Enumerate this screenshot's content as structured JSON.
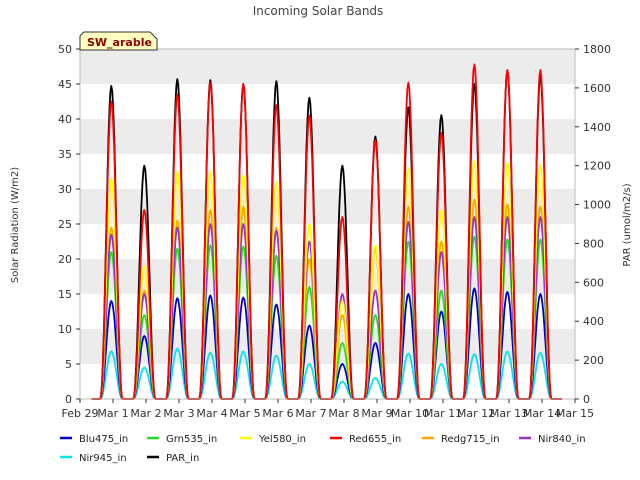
{
  "chart_data": {
    "type": "line",
    "title": "Incoming Solar Bands",
    "xlabel": "",
    "ylabel": "Solar Radiation (W/m2)",
    "y2label": "PAR (umol/m2/s)",
    "badge": "SW_arable",
    "x_tick_labels": [
      "Feb 29",
      "Mar 1",
      "Mar 2",
      "Mar 3",
      "Mar 4",
      "Mar 5",
      "Mar 6",
      "Mar 7",
      "Mar 8",
      "Mar 9",
      "Mar 10",
      "Mar 11",
      "Mar 12",
      "Mar 13",
      "Mar 14",
      "Mar 15"
    ],
    "ylim": [
      0,
      50
    ],
    "yticks": [
      0,
      5,
      10,
      15,
      20,
      25,
      30,
      35,
      40,
      45,
      50
    ],
    "y2lim": [
      0,
      1800
    ],
    "y2ticks": [
      0,
      200,
      400,
      600,
      800,
      1000,
      1200,
      1400,
      1600,
      1800
    ],
    "grid": "horizontal bands",
    "legend_position": "bottom",
    "x_description": "daily peaks, one per day Mar 1 – Mar 14",
    "days": [
      "Mar 1",
      "Mar 2",
      "Mar 3",
      "Mar 4",
      "Mar 5",
      "Mar 6",
      "Mar 7",
      "Mar 8",
      "Mar 9",
      "Mar 10",
      "Mar 11",
      "Mar 12",
      "Mar 13",
      "Mar 14"
    ],
    "series": [
      {
        "name": "Blu475_in",
        "color": "#0000cc",
        "axis": "left",
        "daily_peak": [
          14.0,
          9.0,
          14.4,
          14.8,
          14.5,
          13.5,
          10.5,
          5.0,
          8.0,
          15.0,
          12.5,
          15.8,
          15.3,
          15.0
        ]
      },
      {
        "name": "Grn535_in",
        "color": "#22dd22",
        "axis": "left",
        "daily_peak": [
          21.0,
          12.0,
          21.5,
          22.0,
          21.8,
          20.5,
          16.0,
          8.0,
          12.0,
          22.5,
          15.5,
          23.2,
          22.8,
          22.8
        ]
      },
      {
        "name": "Yel580_in",
        "color": "#ffff00",
        "axis": "left",
        "daily_peak": [
          31.5,
          19.0,
          32.5,
          32.5,
          32.0,
          31.0,
          25.0,
          14.0,
          22.0,
          33.0,
          27.0,
          34.0,
          33.8,
          33.5
        ]
      },
      {
        "name": "Red655_in",
        "color": "#ff0000",
        "axis": "left",
        "daily_peak": [
          42.5,
          27.0,
          43.5,
          45.2,
          45.0,
          42.0,
          40.5,
          26.0,
          37.0,
          45.2,
          38.0,
          47.8,
          47.0,
          47.0
        ]
      },
      {
        "name": "Redg715_in",
        "color": "#ffa500",
        "axis": "left",
        "daily_peak": [
          24.5,
          15.5,
          25.5,
          27.0,
          27.5,
          24.5,
          20.0,
          12.0,
          21.5,
          27.5,
          22.5,
          28.5,
          27.8,
          27.5
        ]
      },
      {
        "name": "Nir840_in",
        "color": "#9933cc",
        "axis": "left",
        "daily_peak": [
          23.5,
          15.0,
          24.5,
          25.0,
          25.0,
          24.0,
          22.5,
          15.0,
          15.5,
          25.3,
          21.0,
          26.0,
          26.0,
          26.0
        ]
      },
      {
        "name": "Nir945_in",
        "color": "#00e5ee",
        "axis": "left",
        "daily_peak": [
          6.8,
          4.5,
          7.2,
          6.6,
          6.8,
          6.2,
          5.0,
          2.5,
          3.0,
          6.5,
          5.0,
          6.4,
          6.8,
          6.6
        ]
      },
      {
        "name": "PAR_in",
        "color": "#000000",
        "axis": "right",
        "daily_peak": [
          1610,
          1200,
          1645,
          1640,
          1620,
          1635,
          1550,
          1200,
          1350,
          1500,
          1460,
          1620,
          1690,
          1660
        ]
      }
    ]
  }
}
